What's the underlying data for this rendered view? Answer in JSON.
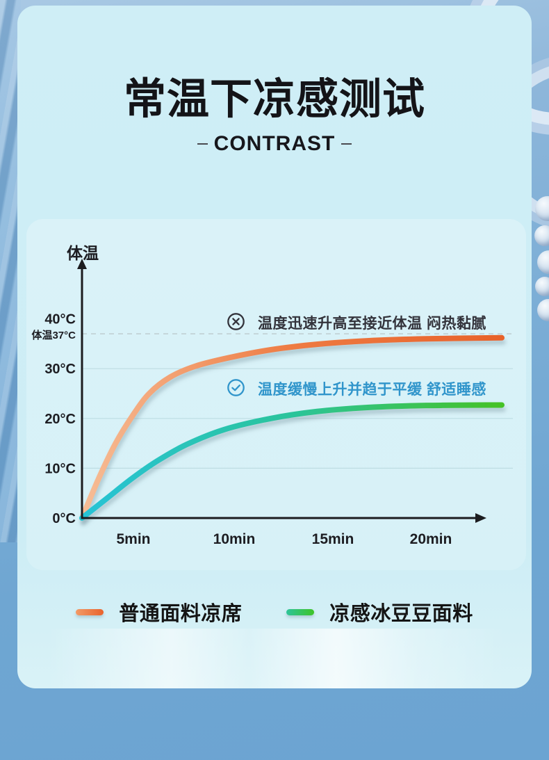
{
  "page": {
    "title": "常温下凉感测试",
    "subtitle": "CONTRAST"
  },
  "chart_data": {
    "type": "line",
    "ylabel": "体温",
    "xlabel": "",
    "y_unit": "°C",
    "x_unit": "axis_fraction (graphic not to scale; ticks in minutes)",
    "ylim": [
      0,
      43
    ],
    "grid": true,
    "y_ticks": [
      {
        "label": "40°C",
        "value": 40,
        "grid": false,
        "dashed": false,
        "small": false
      },
      {
        "label": "体温37°C",
        "value": 37,
        "grid": true,
        "dashed": true,
        "small": true
      },
      {
        "label": "30°C",
        "value": 30,
        "grid": true,
        "dashed": false,
        "small": false
      },
      {
        "label": "20°C",
        "value": 20,
        "grid": true,
        "dashed": false,
        "small": false
      },
      {
        "label": "10°C",
        "value": 10,
        "grid": true,
        "dashed": false,
        "small": false
      },
      {
        "label": "0°C",
        "value": 0,
        "grid": false,
        "dashed": false,
        "small": false
      }
    ],
    "x_ticks": [
      "5min",
      "10min",
      "15min",
      "20min"
    ],
    "body_temp_reference": {
      "label": "体温37°C",
      "value": 37
    },
    "series": [
      {
        "name": "普通面料凉席",
        "color_stops": [
          "#f6bd96",
          "#ee7b43",
          "#e8622a"
        ],
        "legend_gradient": [
          "#f29a66",
          "#e9632c"
        ],
        "annotation": "温度迅速升高至接近体温 闷热黏腻",
        "annotation_icon": "circle-x",
        "annotation_color": "#33333b",
        "plateau": 36.2,
        "points": [
          [
            0,
            0
          ],
          [
            0.04,
            8
          ],
          [
            0.08,
            15
          ],
          [
            0.12,
            20.5
          ],
          [
            0.16,
            25
          ],
          [
            0.21,
            28.3
          ],
          [
            0.27,
            30.5
          ],
          [
            0.35,
            32.2
          ],
          [
            0.45,
            33.8
          ],
          [
            0.56,
            34.9
          ],
          [
            0.68,
            35.6
          ],
          [
            0.82,
            36.0
          ],
          [
            1.0,
            36.2
          ]
        ]
      },
      {
        "name": "凉感冰豆豆面料",
        "color_stops": [
          "#28c3d6",
          "#2bc49b",
          "#45c226"
        ],
        "legend_gradient": [
          "#2ec49a",
          "#3fc427"
        ],
        "annotation": "温度缓慢上升并趋于平缓 舒适睡感",
        "annotation_icon": "circle-check",
        "annotation_color": "#3095cb",
        "plateau": 22.7,
        "points": [
          [
            0,
            0
          ],
          [
            0.06,
            4
          ],
          [
            0.12,
            8
          ],
          [
            0.18,
            11.5
          ],
          [
            0.25,
            14.8
          ],
          [
            0.34,
            17.8
          ],
          [
            0.45,
            20.0
          ],
          [
            0.56,
            21.4
          ],
          [
            0.68,
            22.2
          ],
          [
            0.82,
            22.6
          ],
          [
            1.0,
            22.7
          ]
        ]
      }
    ],
    "legend_position": "bottom",
    "axis_color": "#1c1c1f",
    "gridline_color": "#bedde3",
    "dashed_line_color": "#c0d0d4"
  }
}
